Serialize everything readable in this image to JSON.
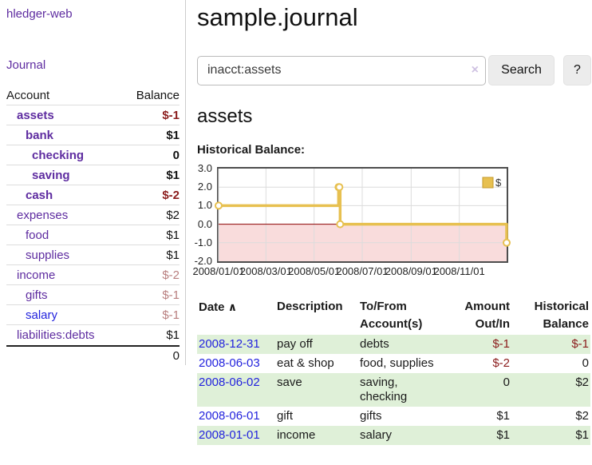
{
  "sidebar": {
    "app_title": "hledger-web",
    "journal_label": "Journal",
    "accounts_header": {
      "account": "Account",
      "balance": "Balance"
    },
    "accounts": [
      {
        "name": "assets",
        "balance": "$-1",
        "indent": 1,
        "bold": true
      },
      {
        "name": "bank",
        "balance": "$1",
        "indent": 2,
        "bold": true
      },
      {
        "name": "checking",
        "balance": "0",
        "indent": 3,
        "bold": true
      },
      {
        "name": "saving",
        "balance": "$1",
        "indent": 3,
        "bold": true
      },
      {
        "name": "cash",
        "balance": "$-2",
        "indent": 2,
        "bold": true
      },
      {
        "name": "expenses",
        "balance": "$2",
        "indent": 1,
        "bold": false
      },
      {
        "name": "food",
        "balance": "$1",
        "indent": 2,
        "bold": false
      },
      {
        "name": "supplies",
        "balance": "$1",
        "indent": 2,
        "bold": false
      },
      {
        "name": "income",
        "balance": "$-2",
        "indent": 1,
        "bold": false
      },
      {
        "name": "gifts",
        "balance": "$-1",
        "indent": 2,
        "bold": false
      },
      {
        "name": "salary",
        "balance": "$-1",
        "indent": 2,
        "bold": false,
        "link_color": "blue"
      },
      {
        "name": "liabilities:debts",
        "balance": "$1",
        "indent": 1,
        "bold": false
      }
    ],
    "total": "0"
  },
  "main": {
    "title": "sample.journal",
    "search": {
      "value": "inacct:assets",
      "clear_icon": "×",
      "button_label": "Search",
      "help_label": "?"
    },
    "account_heading": "assets",
    "register": {
      "headers": {
        "date": "Date",
        "sort_icon": "∧",
        "description": "Description",
        "accounts_line1": "To/From",
        "accounts_line2": "Account(s)",
        "amount_line1": "Amount",
        "amount_line2": "Out/In",
        "balance_line1": "Historical",
        "balance_line2": "Balance"
      },
      "rows": [
        {
          "date": "2008-12-31",
          "description": "pay off",
          "accounts": "debts",
          "amount": "$-1",
          "balance": "$-1"
        },
        {
          "date": "2008-06-03",
          "description": "eat & shop",
          "accounts": "food, supplies",
          "amount": "$-2",
          "balance": "0"
        },
        {
          "date": "2008-06-02",
          "description": "save",
          "accounts": "saving, checking",
          "amount": "0",
          "balance": "$2"
        },
        {
          "date": "2008-06-01",
          "description": "gift",
          "accounts": "gifts",
          "amount": "$1",
          "balance": "$2"
        },
        {
          "date": "2008-01-01",
          "description": "income",
          "accounts": "salary",
          "amount": "$1",
          "balance": "$1"
        }
      ]
    }
  },
  "chart_data": {
    "type": "line",
    "step": true,
    "title": "Historical Balance:",
    "xlabel": "",
    "ylabel": "",
    "xlim": [
      "2008-01-01",
      "2008-12-31"
    ],
    "ylim": [
      -2,
      3
    ],
    "x_ticks": [
      "2008/01/01",
      "2008/03/01",
      "2008/05/01",
      "2008/07/01",
      "2008/09/01",
      "2008/11/01"
    ],
    "y_ticks": [
      3.0,
      2.0,
      1.0,
      0.0,
      -1.0,
      -2.0
    ],
    "grid": true,
    "legend_position": "top-right",
    "series": [
      {
        "name": "$",
        "points": [
          [
            "2008-01-01",
            1
          ],
          [
            "2008-06-01",
            2
          ],
          [
            "2008-06-02",
            2
          ],
          [
            "2008-06-03",
            0
          ],
          [
            "2008-12-31",
            -1
          ]
        ]
      }
    ],
    "colors": {
      "line": "#e7c050",
      "marker_fill": "#ffffff",
      "negative_region": "#f9dcdc",
      "zero_line": "#8b0000",
      "gridline": "#dcdcdc"
    }
  },
  "colors": {
    "link_purple": "#5e2ca0",
    "link_blue": "#2323dd",
    "negative_strong": "#8b1c1c",
    "negative_soft": "#b87e7e",
    "row_green": "#dff0d8"
  }
}
